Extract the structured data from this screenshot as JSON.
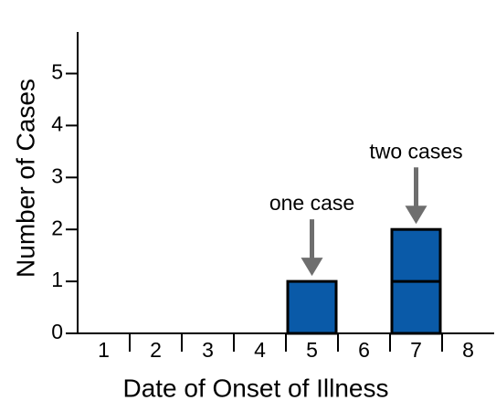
{
  "chart_data": {
    "type": "bar",
    "x_label": "Date of Onset of Illness",
    "y_label": "Number of Cases",
    "categories": [
      "1",
      "2",
      "3",
      "4",
      "5",
      "6",
      "7",
      "8"
    ],
    "values": [
      0,
      0,
      0,
      0,
      1,
      0,
      2,
      0
    ],
    "color": "#0a5aa8",
    "ylim": [
      0,
      5.8
    ],
    "yticks": [
      0,
      1,
      2,
      3,
      4,
      5
    ],
    "annotations": [
      "one case",
      "two cases"
    ]
  }
}
